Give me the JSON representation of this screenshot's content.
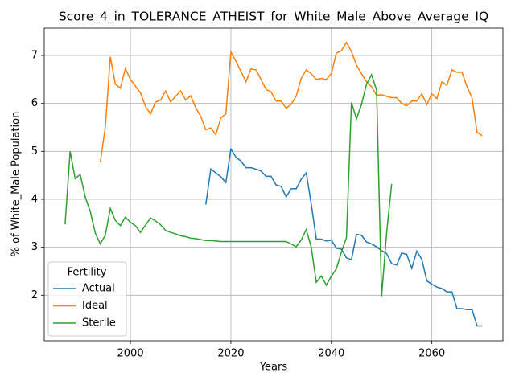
{
  "chart_data": {
    "type": "line",
    "title": "Score_4_in_TOLERANCE_ATHEIST_for_White_Male_Above_Average_IQ",
    "x_label": "Years",
    "y_label": "% of White_Male Population",
    "legend_title": "Fertility",
    "legend_position": "lower left",
    "grid": true,
    "x": [
      1987,
      1988,
      1989,
      1990,
      1991,
      1992,
      1993,
      1994,
      1995,
      1996,
      1997,
      1998,
      1999,
      2000,
      2001,
      2002,
      2003,
      2004,
      2005,
      2006,
      2007,
      2008,
      2009,
      2010,
      2011,
      2012,
      2013,
      2014,
      2015,
      2016,
      2017,
      2018,
      2019,
      2020,
      2021,
      2022,
      2023,
      2024,
      2025,
      2026,
      2027,
      2028,
      2029,
      2030,
      2031,
      2032,
      2033,
      2034,
      2035,
      2036,
      2037,
      2038,
      2039,
      2040,
      2041,
      2042,
      2043,
      2044,
      2045,
      2046,
      2047,
      2048,
      2049,
      2050,
      2051,
      2052,
      2053,
      2054,
      2055,
      2056,
      2057,
      2058,
      2059,
      2060,
      2061,
      2062,
      2063,
      2064,
      2065,
      2066,
      2067,
      2068,
      2069,
      2070
    ],
    "xlim": [
      1982.85,
      2074.15
    ],
    "xticks": [
      2000,
      2020,
      2040,
      2060
    ],
    "ylim": [
      1.05,
      7.57
    ],
    "yticks": [
      2,
      3,
      4,
      5,
      6,
      7
    ],
    "series": [
      {
        "name": "Actual",
        "color": "#1f77b4",
        "values": [
          null,
          null,
          null,
          null,
          null,
          null,
          null,
          null,
          null,
          null,
          null,
          null,
          null,
          null,
          null,
          null,
          null,
          null,
          null,
          null,
          null,
          null,
          null,
          null,
          null,
          null,
          null,
          null,
          3.89,
          4.63,
          4.55,
          4.47,
          4.35,
          5.05,
          4.88,
          4.8,
          4.66,
          4.66,
          4.63,
          4.59,
          4.48,
          4.48,
          4.3,
          4.27,
          4.05,
          4.22,
          4.22,
          4.42,
          4.55,
          3.9,
          3.17,
          3.17,
          3.13,
          3.15,
          2.98,
          2.96,
          2.78,
          2.74,
          3.27,
          3.25,
          3.11,
          3.07,
          3.01,
          2.93,
          2.87,
          2.66,
          2.63,
          2.88,
          2.85,
          2.56,
          2.92,
          2.75,
          2.3,
          2.23,
          2.17,
          2.14,
          2.07,
          2.07,
          1.72,
          1.72,
          1.7,
          1.7,
          1.36,
          1.36
        ]
      },
      {
        "name": "Ideal",
        "color": "#ff7f0e",
        "values": [
          null,
          null,
          null,
          null,
          null,
          null,
          null,
          4.77,
          5.5,
          6.97,
          6.4,
          6.32,
          6.73,
          6.5,
          6.36,
          6.22,
          5.94,
          5.78,
          6.03,
          6.07,
          6.26,
          6.03,
          6.15,
          6.26,
          6.07,
          6.16,
          5.91,
          5.73,
          5.45,
          5.49,
          5.35,
          5.7,
          5.78,
          7.07,
          6.88,
          6.67,
          6.45,
          6.72,
          6.7,
          6.5,
          6.29,
          6.24,
          6.05,
          6.05,
          5.9,
          5.98,
          6.15,
          6.52,
          6.7,
          6.62,
          6.5,
          6.52,
          6.5,
          6.62,
          7.05,
          7.1,
          7.27,
          7.08,
          6.8,
          6.62,
          6.45,
          6.35,
          6.17,
          6.18,
          6.15,
          6.12,
          6.12,
          6.0,
          5.95,
          6.05,
          6.05,
          6.2,
          5.98,
          6.2,
          6.1,
          6.45,
          6.38,
          6.7,
          6.65,
          6.65,
          6.35,
          6.12,
          5.4,
          5.33
        ]
      },
      {
        "name": "Sterile",
        "color": "#2ca02c",
        "values": [
          3.48,
          5.0,
          4.43,
          4.52,
          4.05,
          3.75,
          3.3,
          3.07,
          3.25,
          3.81,
          3.56,
          3.45,
          3.63,
          3.52,
          3.45,
          3.31,
          3.46,
          3.61,
          3.55,
          3.47,
          3.35,
          3.31,
          3.28,
          3.24,
          3.22,
          3.19,
          3.18,
          3.16,
          3.14,
          3.14,
          3.13,
          3.12,
          3.12,
          3.12,
          3.12,
          3.12,
          3.12,
          3.12,
          3.12,
          3.12,
          3.12,
          3.12,
          3.12,
          3.12,
          3.12,
          3.07,
          3.01,
          3.15,
          3.37,
          3.0,
          2.27,
          2.4,
          2.21,
          2.4,
          2.55,
          2.9,
          3.2,
          6.02,
          5.68,
          5.98,
          6.4,
          6.6,
          6.28,
          1.98,
          3.3,
          4.32,
          null,
          null,
          null,
          null,
          null,
          null,
          null,
          null,
          null,
          null,
          null,
          null,
          null,
          null,
          null,
          null,
          null,
          null
        ]
      }
    ]
  }
}
